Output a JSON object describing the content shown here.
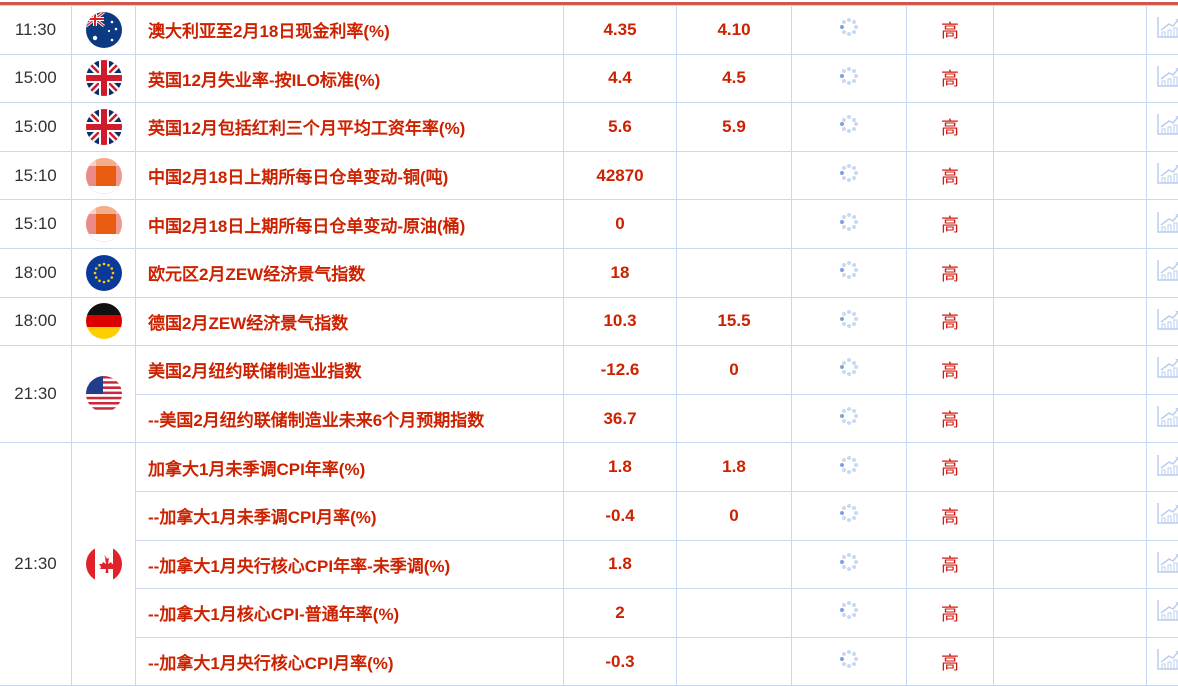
{
  "colors": {
    "accent_red": "#cc2200",
    "border": "#c8d8f0",
    "top_bar": "#d2574a"
  },
  "groups": [
    {
      "time": "11:30",
      "flag": "australia-flag",
      "events": [
        {
          "name": "澳大利亚至2月18日现金利率(%)",
          "previous": "4.35",
          "forecast": "4.10",
          "actual": "",
          "importance": "高"
        }
      ]
    },
    {
      "time": "15:00",
      "flag": "uk-flag",
      "events": [
        {
          "name": "英国12月失业率-按ILO标准(%)",
          "previous": "4.4",
          "forecast": "4.5",
          "actual": "",
          "importance": "高"
        }
      ]
    },
    {
      "time": "15:00",
      "flag": "uk-flag",
      "events": [
        {
          "name": "英国12月包括红利三个月平均工资年率(%)",
          "previous": "5.6",
          "forecast": "5.9",
          "actual": "",
          "importance": "高"
        }
      ]
    },
    {
      "time": "15:10",
      "flag": "china-flag-pixelated",
      "events": [
        {
          "name": "中国2月18日上期所每日仓单变动-铜(吨)",
          "previous": "42870",
          "forecast": "",
          "actual": "",
          "importance": "高"
        }
      ]
    },
    {
      "time": "15:10",
      "flag": "china-flag-pixelated",
      "events": [
        {
          "name": "中国2月18日上期所每日仓单变动-原油(桶)",
          "previous": "0",
          "forecast": "",
          "actual": "",
          "importance": "高"
        }
      ]
    },
    {
      "time": "18:00",
      "flag": "eu-flag",
      "events": [
        {
          "name": "欧元区2月ZEW经济景气指数",
          "previous": "18",
          "forecast": "",
          "actual": "",
          "importance": "高"
        }
      ]
    },
    {
      "time": "18:00",
      "flag": "germany-flag",
      "events": [
        {
          "name": "德国2月ZEW经济景气指数",
          "previous": "10.3",
          "forecast": "15.5",
          "actual": "",
          "importance": "高"
        }
      ]
    },
    {
      "time": "21:30",
      "flag": "us-flag",
      "events": [
        {
          "name": "美国2月纽约联储制造业指数",
          "previous": "-12.6",
          "forecast": "0",
          "actual": "",
          "importance": "高"
        },
        {
          "name": "--美国2月纽约联储制造业未来6个月预期指数",
          "previous": "36.7",
          "forecast": "",
          "actual": "",
          "importance": "高"
        }
      ]
    },
    {
      "time": "21:30",
      "flag": "canada-flag",
      "events": [
        {
          "name": "加拿大1月未季调CPI年率(%)",
          "previous": "1.8",
          "forecast": "1.8",
          "actual": "",
          "importance": "高"
        },
        {
          "name": "--加拿大1月未季调CPI月率(%)",
          "previous": "-0.4",
          "forecast": "0",
          "actual": "",
          "importance": "高"
        },
        {
          "name": "--加拿大1月央行核心CPI年率-未季调(%)",
          "previous": "1.8",
          "forecast": "",
          "actual": "",
          "importance": "高"
        },
        {
          "name": "--加拿大1月核心CPI-普通年率(%)",
          "previous": "2",
          "forecast": "",
          "actual": "",
          "importance": "高"
        },
        {
          "name": "--加拿大1月央行核心CPI月率(%)",
          "previous": "-0.3",
          "forecast": "",
          "actual": "",
          "importance": "高"
        }
      ]
    }
  ]
}
